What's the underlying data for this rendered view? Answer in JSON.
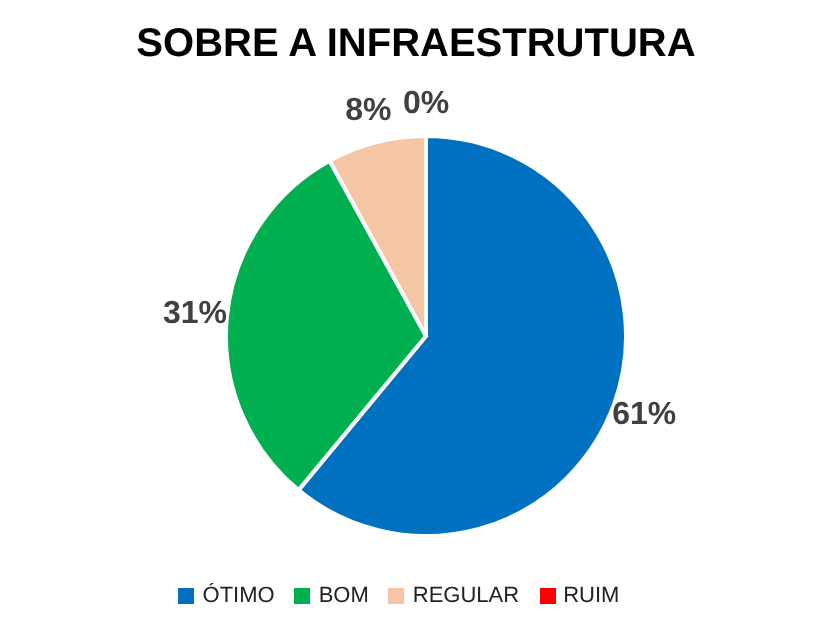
{
  "chart_data": {
    "type": "pie",
    "title": "SOBRE A INFRAESTRUTURA",
    "categories": [
      "ÓTIMO",
      "BOM",
      "REGULAR",
      "RUIM"
    ],
    "values": [
      61,
      31,
      8,
      0
    ],
    "colors": [
      "#0070c0",
      "#00b050",
      "#f5c6a5",
      "#ff0000"
    ],
    "value_labels": [
      "61%",
      "31%",
      "8%",
      "0%"
    ],
    "legend": "bottom"
  }
}
